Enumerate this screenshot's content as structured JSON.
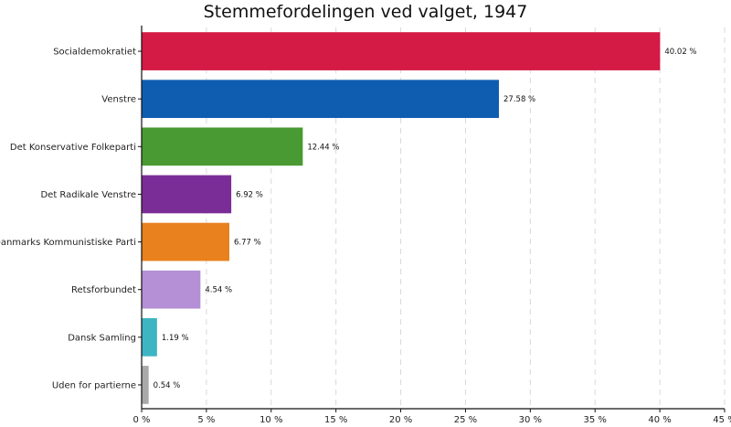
{
  "chart_data": {
    "type": "bar",
    "orientation": "horizontal",
    "title": "Stemmefordelingen ved valget, 1947",
    "xlabel": "",
    "ylabel": "",
    "categories": [
      "Socialdemokratiet",
      "Venstre",
      "Det Konservative Folkeparti",
      "Det Radikale Venstre",
      "Danmarks Kommunistiske Parti",
      "Retsforbundet",
      "Dansk Samling",
      "Uden for partierne"
    ],
    "values": [
      40.02,
      27.58,
      12.44,
      6.92,
      6.77,
      4.54,
      1.19,
      0.54
    ],
    "value_labels": [
      "40.02 %",
      "27.58 %",
      "12.44 %",
      "6.92 %",
      "6.77 %",
      "4.54 %",
      "1.19 %",
      "0.54 %"
    ],
    "colors": [
      "#d41b45",
      "#0f5db1",
      "#4a9a34",
      "#7b2d97",
      "#e8811e",
      "#b590d6",
      "#3eb5c2",
      "#a9a9a9"
    ],
    "xlim": [
      0,
      45
    ],
    "xticks": [
      0,
      5,
      10,
      15,
      20,
      25,
      30,
      35,
      40,
      45
    ],
    "xtick_labels": [
      "0 %",
      "5 %",
      "10 %",
      "15 %",
      "20 %",
      "25 %",
      "30 %",
      "35 %",
      "40 %",
      "45 %"
    ],
    "grid": "vertical dashed",
    "legend": "none"
  }
}
